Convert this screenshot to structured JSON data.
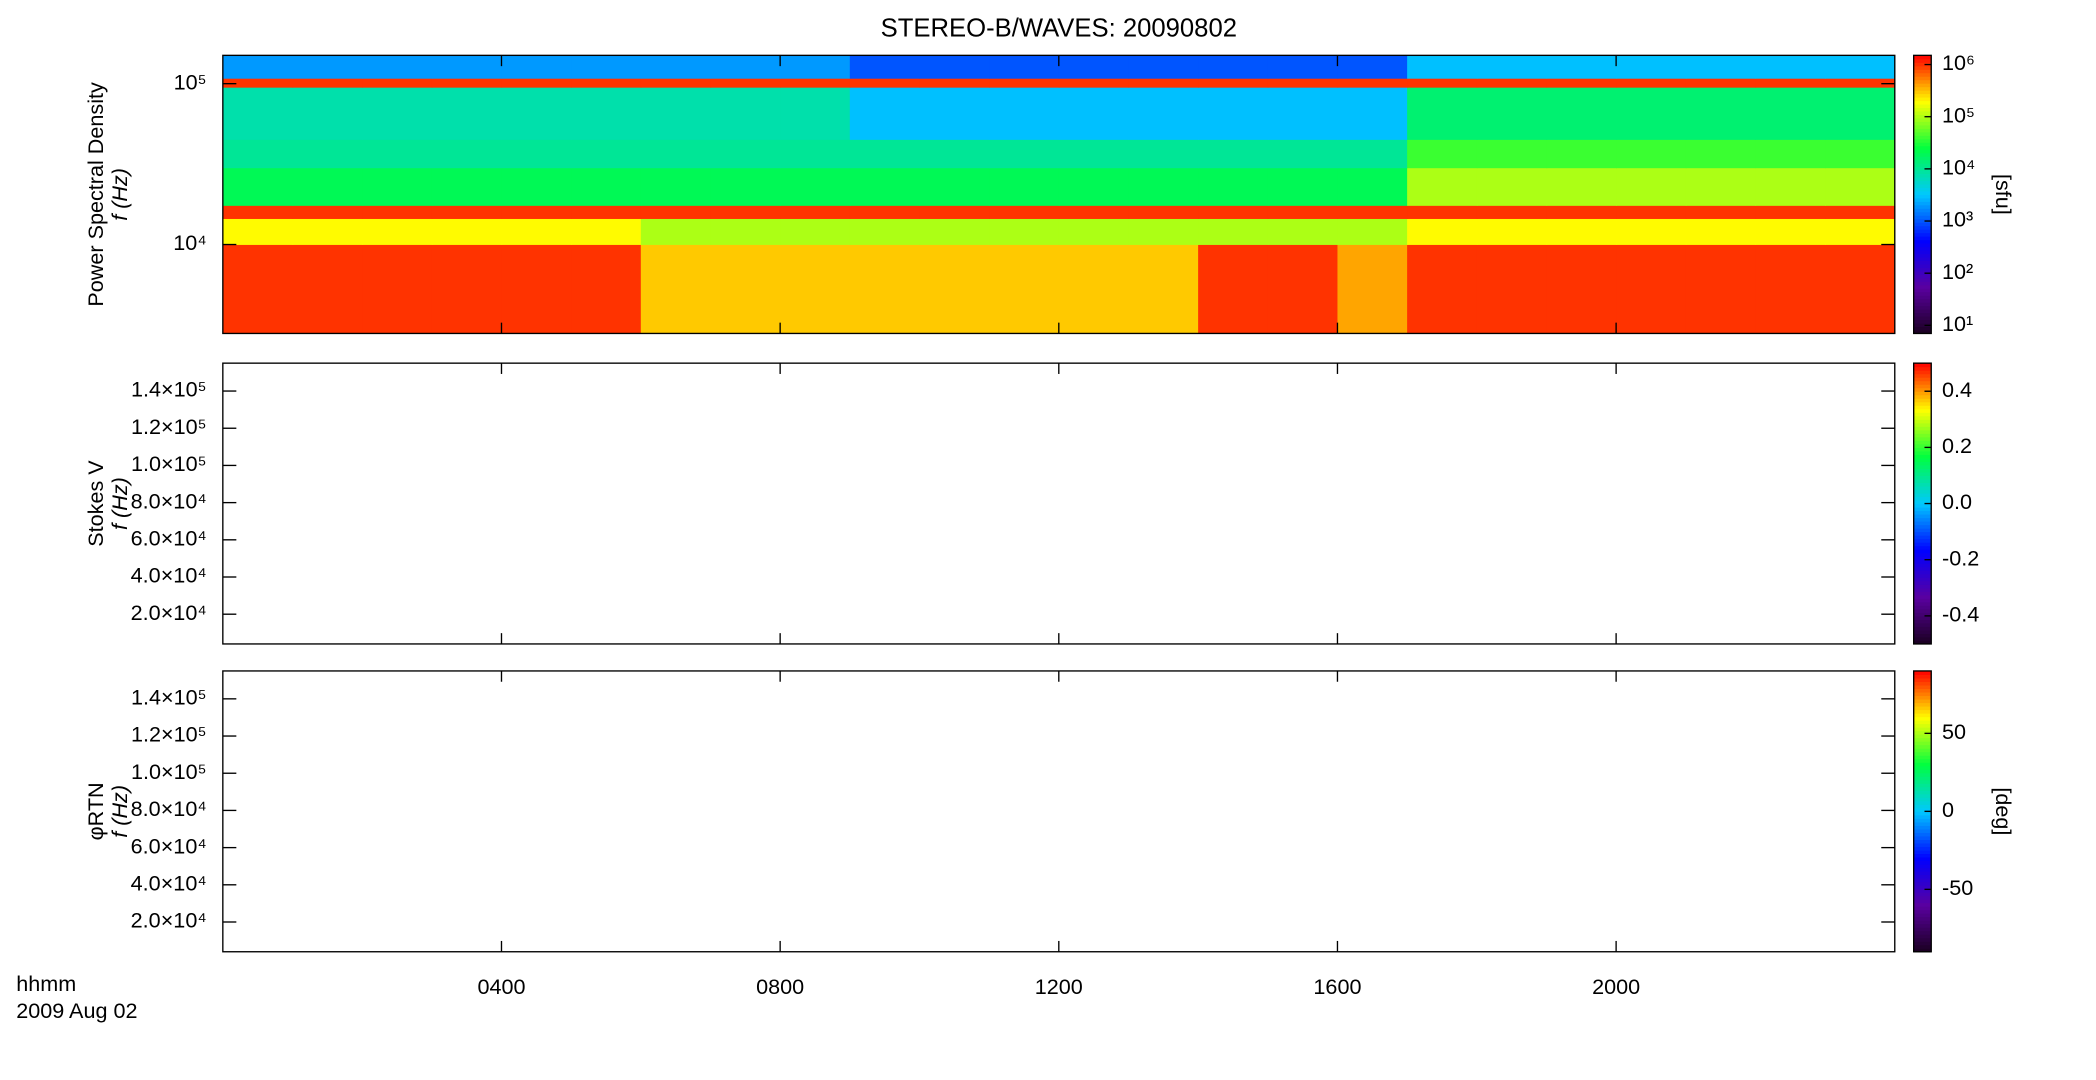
{
  "chart_data": [
    {
      "type": "heatmap",
      "title": "STEREO-B/WAVES: 20090802",
      "ylabel_lines": [
        "Power Spectral Density",
        "f (Hz)"
      ],
      "ylog": true,
      "ylim": [
        2800,
        150000
      ],
      "yticks": [
        {
          "value": 10000,
          "label": "10⁴"
        },
        {
          "value": 100000,
          "label": "10⁵"
        }
      ],
      "xlim": [
        0,
        1440
      ],
      "x_bins": [
        0,
        60,
        120,
        180,
        240,
        300,
        360,
        420,
        480,
        540,
        600,
        660,
        720,
        780,
        840,
        900,
        960,
        1020,
        1080,
        1140,
        1200,
        1260,
        1320,
        1380,
        1440
      ],
      "y_bins": [
        2800,
        10000,
        14500,
        17500,
        30000,
        45000,
        95000,
        108000,
        150000
      ],
      "values": [
        [
          1000000,
          1000000,
          1000000,
          1000000,
          1000000,
          1000000,
          300000,
          300000,
          300000,
          300000,
          300000,
          300000,
          300000,
          300000,
          1000000,
          1000000,
          400000,
          1000000,
          1000000,
          1000000,
          1000000,
          1000000,
          1000000,
          1000000
        ],
        [
          200000,
          200000,
          200000,
          200000,
          200000,
          200000,
          100000,
          100000,
          100000,
          100000,
          100000,
          100000,
          100000,
          100000,
          100000,
          100000,
          100000,
          200000,
          200000,
          200000,
          200000,
          200000,
          200000,
          200000
        ],
        [
          1000000,
          1000000,
          1000000,
          1000000,
          1000000,
          1000000,
          1000000,
          1000000,
          1000000,
          1000000,
          1000000,
          1000000,
          1000000,
          1000000,
          1000000,
          1000000,
          1000000,
          1000000,
          1000000,
          1000000,
          1000000,
          1000000,
          1000000,
          1000000
        ],
        [
          20000,
          20000,
          20000,
          20000,
          20000,
          20000,
          20000,
          20000,
          20000,
          20000,
          20000,
          20000,
          20000,
          20000,
          20000,
          20000,
          20000,
          100000,
          100000,
          100000,
          100000,
          100000,
          100000,
          100000
        ],
        [
          10000,
          10000,
          10000,
          10000,
          10000,
          10000,
          10000,
          10000,
          10000,
          10000,
          10000,
          10000,
          10000,
          10000,
          10000,
          10000,
          10000,
          40000,
          40000,
          40000,
          40000,
          40000,
          40000,
          40000
        ],
        [
          8000,
          8000,
          8000,
          8000,
          8000,
          8000,
          8000,
          8000,
          8000,
          3000,
          3000,
          3000,
          3000,
          3000,
          3000,
          3000,
          3000,
          15000,
          15000,
          15000,
          15000,
          15000,
          15000,
          15000
        ],
        [
          1000000,
          1000000,
          1000000,
          1000000,
          1000000,
          1000000,
          1000000,
          1000000,
          1000000,
          1000000,
          1000000,
          1000000,
          1000000,
          1000000,
          1000000,
          1000000,
          1000000,
          1000000,
          1000000,
          1000000,
          1000000,
          1000000,
          1000000,
          1000000
        ],
        [
          2000,
          2000,
          2000,
          2000,
          2000,
          2000,
          2000,
          2000,
          2000,
          1000,
          1000,
          1000,
          1000,
          1000,
          1000,
          1000,
          1000,
          3000,
          3000,
          3000,
          3000,
          3000,
          3000,
          3000
        ]
      ],
      "clog": true,
      "clim": [
        7,
        1500000
      ],
      "cticks": [
        {
          "value": 10,
          "label": "10¹"
        },
        {
          "value": 100,
          "label": "10²"
        },
        {
          "value": 1000,
          "label": "10³"
        },
        {
          "value": 10000,
          "label": "10⁴"
        },
        {
          "value": 100000,
          "label": "10⁵"
        },
        {
          "value": 1000000,
          "label": "10⁶"
        }
      ],
      "clabel": "[sfu]",
      "colormap": [
        "#1a0020",
        "#5a00a0",
        "#0000ff",
        "#00c8ff",
        "#00ff40",
        "#ffff00",
        "#ff0000"
      ]
    },
    {
      "type": "heatmap",
      "ylabel_lines": [
        "Stokes V",
        "f (Hz)"
      ],
      "ylim": [
        4000,
        155000
      ],
      "yticks": [
        {
          "value": 20000,
          "label": "2.0×10⁴"
        },
        {
          "value": 40000,
          "label": "4.0×10⁴"
        },
        {
          "value": 60000,
          "label": "6.0×10⁴"
        },
        {
          "value": 80000,
          "label": "8.0×10⁴"
        },
        {
          "value": 100000,
          "label": "1.0×10⁵"
        },
        {
          "value": 120000,
          "label": "1.2×10⁵"
        },
        {
          "value": 140000,
          "label": "1.4×10⁵"
        }
      ],
      "xlim": [
        0,
        1440
      ],
      "clim": [
        -0.5,
        0.5
      ],
      "cticks": [
        -0.4,
        -0.2,
        {
          "value": 0,
          "label": "0.0"
        },
        0.2,
        0.4
      ],
      "colormap": [
        "#1a0020",
        "#5a00a0",
        "#0000ff",
        "#00c8ff",
        "#00ff40",
        "#ffff00",
        "#ff0000"
      ]
    },
    {
      "type": "heatmap",
      "ylabel_lines": [
        "φRTN",
        "f (Hz)"
      ],
      "ylim": [
        4000,
        155000
      ],
      "yticks": [
        {
          "value": 20000,
          "label": "2.0×10⁴"
        },
        {
          "value": 40000,
          "label": "4.0×10⁴"
        },
        {
          "value": 60000,
          "label": "6.0×10⁴"
        },
        {
          "value": 80000,
          "label": "8.0×10⁴"
        },
        {
          "value": 100000,
          "label": "1.0×10⁵"
        },
        {
          "value": 120000,
          "label": "1.2×10⁵"
        },
        {
          "value": 140000,
          "label": "1.4×10⁵"
        }
      ],
      "xlim": [
        0,
        1440
      ],
      "xticks": [
        {
          "value": 240,
          "label": "0400"
        },
        {
          "value": 480,
          "label": "0800"
        },
        {
          "value": 720,
          "label": "1200"
        },
        {
          "value": 960,
          "label": "1600"
        },
        {
          "value": 1200,
          "label": "2000"
        }
      ],
      "xlabel_lines": [
        "hhmm",
        "2009 Aug 02"
      ],
      "clim": [
        -90,
        90
      ],
      "cticks": [
        -50,
        0,
        50
      ],
      "clabel": "[deg]",
      "colormap": [
        "#1a0020",
        "#5a00a0",
        "#0000ff",
        "#00c8ff",
        "#00ff40",
        "#ffff00",
        "#ff0000"
      ]
    }
  ]
}
